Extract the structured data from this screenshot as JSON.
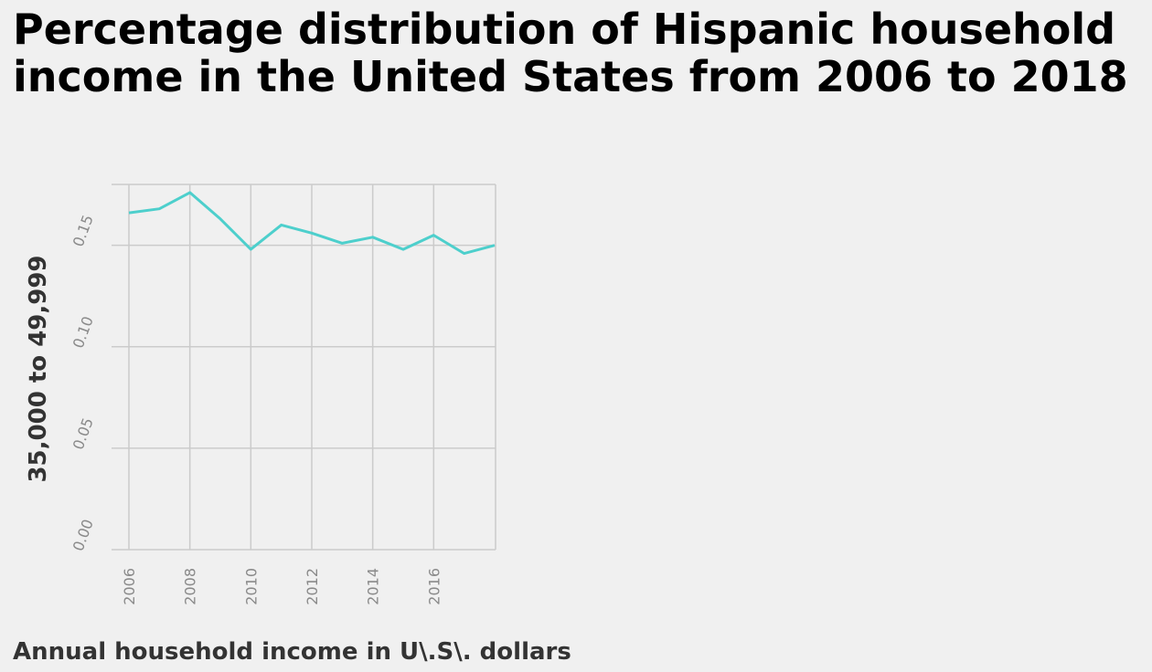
{
  "chart_data": {
    "type": "line",
    "title": "Percentage distribution of Hispanic household income in the United States from 2006 to 2018",
    "xlabel": "Annual household income in U\\.S\\. dollars",
    "ylabel": "35,000 to 49,999",
    "x": [
      2006,
      2007,
      2008,
      2009,
      2010,
      2011,
      2012,
      2013,
      2014,
      2015,
      2016,
      2017,
      2018
    ],
    "series": [
      {
        "values": [
          0.166,
          0.168,
          0.176,
          0.163,
          0.148,
          0.16,
          0.156,
          0.151,
          0.154,
          0.148,
          0.155,
          0.146,
          0.15
        ]
      }
    ],
    "xlim": [
      2006,
      2018
    ],
    "ylim": [
      0,
      0.18
    ],
    "x_ticks": [
      "2006",
      "2008",
      "2010",
      "2012",
      "2014",
      "2016"
    ],
    "y_ticks": [
      "0.00",
      "0.05",
      "0.10",
      "0.15"
    ],
    "grid": true,
    "line_color": "#4dcfcc",
    "grid_color": "#cbcbcb"
  }
}
